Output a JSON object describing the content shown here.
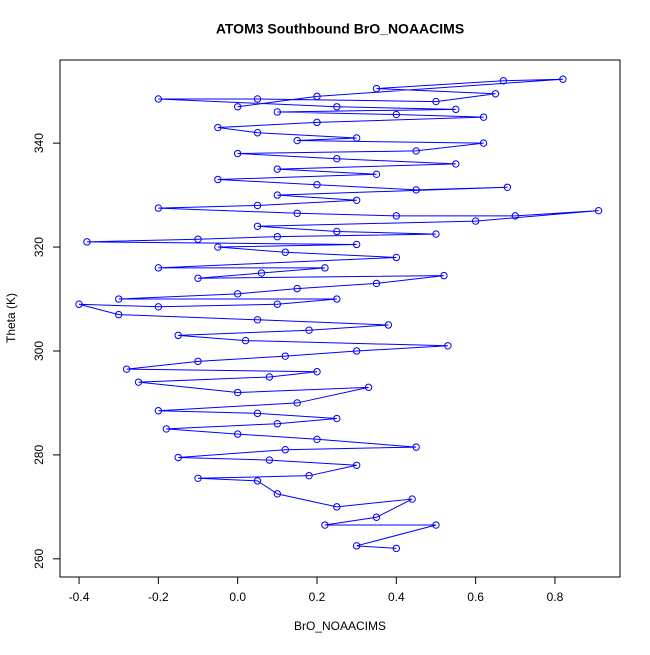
{
  "chart_data": {
    "type": "line",
    "marker": "circle",
    "color": "#0000ff",
    "title": "ATOM3 Southbound BrO_NOAACIMS",
    "x_label": "BrO_NOAACIMS",
    "y_label": "Theta (K)",
    "xlim": [
      -0.448,
      0.964
    ],
    "ylim": [
      256.5,
      356
    ],
    "xticks": [
      -0.4,
      -0.2,
      {
        "value": 0,
        "label": "0.0"
      },
      0.2,
      0.4,
      0.6,
      0.8
    ],
    "yticks": [
      260,
      280,
      300,
      320,
      340
    ],
    "x": [
      0.4,
      0.3,
      0.5,
      0.22,
      0.35,
      0.44,
      0.25,
      0.1,
      0.05,
      -0.1,
      0.18,
      0.3,
      0.08,
      -0.15,
      0.12,
      0.45,
      0.2,
      0.0,
      -0.18,
      0.1,
      0.25,
      0.05,
      -0.2,
      0.15,
      0.33,
      0.0,
      -0.25,
      0.08,
      0.2,
      -0.28,
      -0.1,
      0.12,
      0.3,
      0.53,
      0.02,
      -0.15,
      0.18,
      0.38,
      0.05,
      -0.3,
      -0.4,
      -0.2,
      0.1,
      0.25,
      -0.3,
      0.0,
      0.15,
      0.35,
      0.52,
      -0.1,
      0.06,
      0.22,
      -0.2,
      0.4,
      0.12,
      -0.05,
      0.3,
      -0.38,
      -0.1,
      0.1,
      0.5,
      0.25,
      0.05,
      0.6,
      0.91,
      0.7,
      0.4,
      0.15,
      -0.2,
      0.05,
      0.3,
      0.1,
      0.68,
      0.45,
      0.2,
      -0.05,
      0.35,
      0.1,
      0.55,
      0.25,
      0.0,
      0.45,
      0.62,
      0.15,
      0.3,
      0.05,
      -0.05,
      0.2,
      0.62,
      0.4,
      0.1,
      0.55,
      0.25,
      -0.2,
      0.05,
      0.5,
      0.65,
      0.35,
      0.67,
      0.82,
      0.2,
      0.0
    ],
    "y": [
      262,
      262.5,
      266.5,
      266.5,
      268,
      271.5,
      270,
      272.5,
      275,
      275.5,
      276,
      278,
      279,
      279.5,
      281,
      281.5,
      283,
      284,
      285,
      286,
      287,
      288,
      288.5,
      290,
      293,
      292,
      294,
      295,
      296,
      296.5,
      298,
      299,
      300,
      301,
      302,
      303,
      304,
      305,
      306,
      307,
      309,
      308.5,
      309,
      310,
      310,
      311,
      312,
      313,
      314.5,
      314,
      315,
      316,
      316,
      318,
      319,
      320,
      320.5,
      321,
      321.5,
      322,
      322.5,
      323,
      324,
      325,
      327,
      326,
      326,
      326.5,
      327.5,
      328,
      329,
      330,
      331.5,
      331,
      332,
      333,
      334,
      335,
      336,
      337,
      338,
      338.5,
      340,
      340.5,
      341,
      342,
      343,
      344,
      345,
      345.5,
      346,
      346.5,
      347,
      348.5,
      348.5,
      348,
      349.5,
      350.5,
      352,
      352.3,
      349,
      347
    ]
  }
}
